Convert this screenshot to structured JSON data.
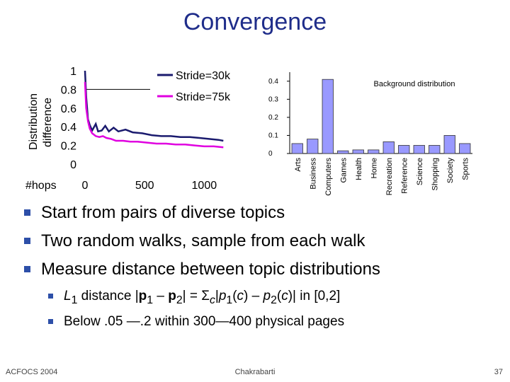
{
  "slide": {
    "title": "Convergence",
    "bullets": [
      "Start from pairs of diverse topics",
      "Two random walks, sample from each walk",
      "Measure distance between topic distributions"
    ],
    "sub_bullets": [
      "L1 distance |p1 – p2| = Σc|p1(c) – p2(c)| in [0,2]",
      "Below .05 —.2 within 300—400 physical pages"
    ],
    "footer": {
      "left": "ACFOCS 2004",
      "center": "Chakrabarti",
      "right": "37"
    }
  },
  "chart_data": [
    {
      "type": "line",
      "ylabel": "Distribution difference",
      "xlabel": "#hops",
      "xticks": [
        "0",
        "500",
        "1000"
      ],
      "yticks": [
        "0",
        "0.2",
        "0.4",
        "0.6",
        "0.8",
        "1"
      ],
      "xlim": [
        0,
        1200
      ],
      "ylim": [
        0,
        1
      ],
      "legend_position": "top-right",
      "series": [
        {
          "name": "Stride=30k",
          "color": "#1a1a6e",
          "x": [
            0,
            10,
            25,
            40,
            60,
            90,
            110,
            140,
            170,
            200,
            240,
            280,
            340,
            400,
            480,
            560,
            640,
            720,
            800,
            880,
            960,
            1040,
            1120,
            1160
          ],
          "y": [
            1.0,
            0.72,
            0.48,
            0.42,
            0.36,
            0.43,
            0.35,
            0.36,
            0.41,
            0.35,
            0.39,
            0.35,
            0.37,
            0.34,
            0.33,
            0.31,
            0.3,
            0.3,
            0.29,
            0.29,
            0.28,
            0.27,
            0.26,
            0.25
          ]
        },
        {
          "name": "Stride=75k",
          "color": "#e000e0",
          "x": [
            0,
            10,
            25,
            40,
            60,
            90,
            120,
            150,
            180,
            220,
            260,
            320,
            380,
            440,
            520,
            600,
            680,
            760,
            840,
            920,
            1000,
            1080,
            1160
          ],
          "y": [
            0.88,
            0.6,
            0.46,
            0.38,
            0.33,
            0.3,
            0.29,
            0.3,
            0.28,
            0.27,
            0.25,
            0.25,
            0.24,
            0.24,
            0.23,
            0.22,
            0.22,
            0.21,
            0.21,
            0.2,
            0.19,
            0.19,
            0.18
          ]
        }
      ]
    },
    {
      "type": "bar",
      "title": "Background distribution",
      "categories": [
        "Arts",
        "Business",
        "Computers",
        "Games",
        "Health",
        "Home",
        "Recreation",
        "Reference",
        "Science",
        "Shopping",
        "Society",
        "Sports"
      ],
      "values": [
        0.055,
        0.08,
        0.41,
        0.015,
        0.02,
        0.02,
        0.065,
        0.045,
        0.045,
        0.045,
        0.1,
        0.055
      ],
      "yticks": [
        "0",
        "0.1",
        "0.2",
        "0.3",
        "0.4"
      ],
      "ylim": [
        0,
        0.45
      ],
      "bar_color": "#9999ff"
    }
  ]
}
